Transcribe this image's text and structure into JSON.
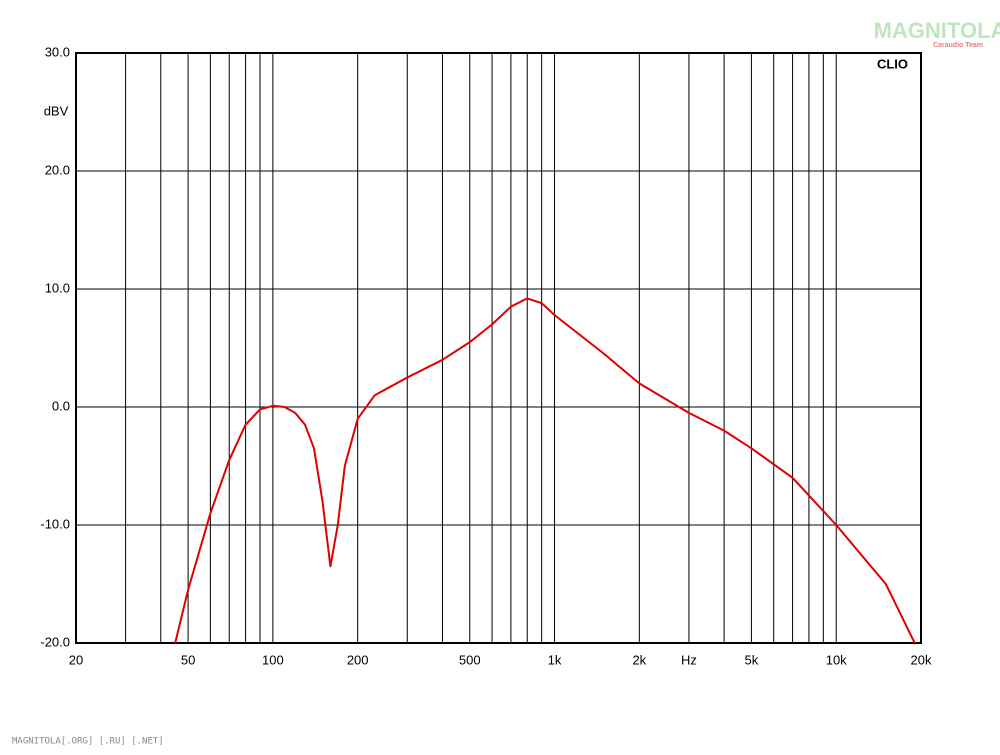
{
  "chart_data": {
    "type": "line",
    "y_label": "dBV",
    "brand": "CLIO",
    "watermark": "MAGNITOLA",
    "watermark_sub": "Caraudio Team",
    "footer": "MAGNITOLA[.ORG] [.RU] [.NET]",
    "xlog": true,
    "grid": true,
    "xlim": [
      20,
      20000
    ],
    "ylim": [
      -20,
      30
    ],
    "xticks": [
      20,
      50,
      100,
      200,
      500,
      {
        "value": 1000,
        "label": "1k"
      },
      {
        "value": 2000,
        "label": "2k"
      },
      {
        "value": 3000,
        "label": "Hz"
      },
      {
        "value": 5000,
        "label": "5k"
      },
      {
        "value": 10000,
        "label": "10k"
      },
      {
        "value": 20000,
        "label": "20k"
      }
    ],
    "xminor_ticks": [
      30,
      40,
      60,
      70,
      80,
      90,
      300,
      400,
      600,
      700,
      800,
      900,
      4000,
      6000,
      7000,
      8000,
      9000
    ],
    "yticks": [
      {
        "value": -20,
        "label": "-20.0"
      },
      {
        "value": -10,
        "label": "-10.0"
      },
      {
        "value": 0,
        "label": "0.0"
      },
      {
        "value": 10,
        "label": "10.0"
      },
      {
        "value": 20,
        "label": "20.0"
      },
      {
        "value": 30,
        "label": "30.0"
      }
    ],
    "x": [
      45,
      50,
      60,
      70,
      80,
      90,
      100,
      110,
      120,
      130,
      140,
      150,
      160,
      170,
      180,
      200,
      230,
      300,
      400,
      500,
      600,
      700,
      800,
      900,
      1000,
      1500,
      2000,
      3000,
      4000,
      5000,
      7000,
      10000,
      15000,
      19000
    ],
    "series": [
      {
        "color": "#e00000",
        "values": [
          -20,
          -15.5,
          -9,
          -4.5,
          -1.5,
          -0.2,
          0.1,
          0,
          -0.5,
          -1.5,
          -3.5,
          -8,
          -13.5,
          -10,
          -5,
          -1,
          1,
          2.5,
          4,
          5.5,
          7,
          8.5,
          9.2,
          8.8,
          7.8,
          4.5,
          2,
          -0.5,
          -2,
          -3.5,
          -6,
          -10,
          -15,
          -20
        ]
      }
    ]
  }
}
